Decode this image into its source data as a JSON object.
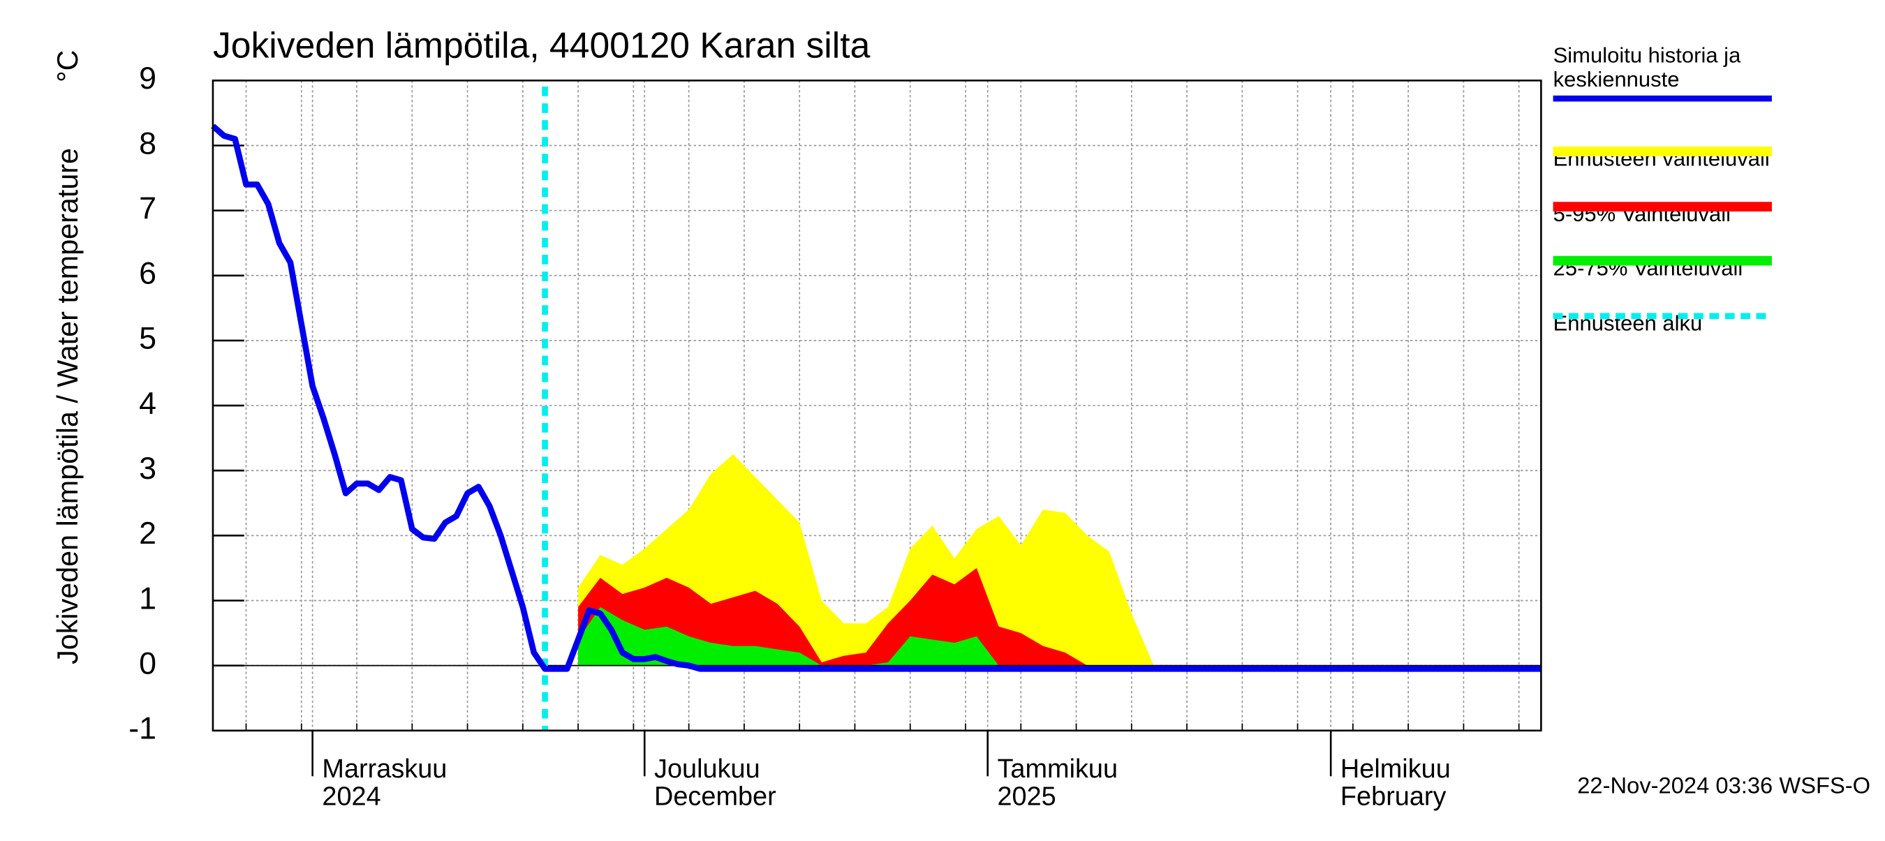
{
  "chart_data": {
    "type": "line",
    "title": "Jokiveden lämpötila, 4400120 Karan silta",
    "ylabel": "Jokiveden lämpötila / Water temperature",
    "yunit": "°C",
    "timestamp": "22-Nov-2024 03:36 WSFS-O",
    "grid": true,
    "xlim": [
      0,
      120
    ],
    "xticks": [
      {
        "value": 9,
        "label": "Marraskuu 2024"
      },
      {
        "value": 39,
        "label": "Joulukuu December"
      },
      {
        "value": 70,
        "label": "Tammikuu 2025"
      },
      {
        "value": 101,
        "label": "Helmikuu February"
      }
    ],
    "xgrid": [
      3,
      8,
      13,
      18,
      23,
      28,
      33,
      38,
      43,
      48,
      53,
      58,
      63,
      68,
      73,
      78,
      83,
      88,
      93,
      98,
      103,
      108,
      113,
      118
    ],
    "ylim": [
      -1,
      9
    ],
    "yticks": [
      -1,
      0,
      1,
      2,
      3,
      4,
      5,
      6,
      7,
      8,
      9
    ],
    "x": [
      0,
      1,
      2,
      3,
      4,
      5,
      6,
      7,
      8,
      9,
      10,
      11,
      12,
      13,
      14,
      15,
      16,
      17,
      18,
      19,
      20,
      21,
      22,
      23,
      24,
      25,
      26,
      27,
      28,
      29,
      30,
      31,
      32,
      33,
      34,
      35,
      36,
      37,
      38,
      39,
      40,
      41,
      42,
      43,
      44,
      45,
      46,
      47,
      48,
      49,
      50,
      51,
      52,
      53,
      54,
      55,
      56,
      57,
      58,
      59,
      60,
      61,
      62,
      63,
      64,
      65,
      66,
      67,
      68,
      69,
      70,
      71,
      72,
      73,
      74,
      75,
      76,
      77,
      78,
      79,
      80,
      81,
      82,
      83,
      84,
      85,
      86,
      87,
      88,
      89,
      90,
      91,
      92,
      93,
      94,
      95,
      96,
      97,
      98,
      99,
      100,
      101,
      102,
      103,
      104,
      105,
      106,
      107,
      108,
      109,
      110,
      111,
      112,
      113,
      114,
      115,
      116,
      117,
      118,
      119,
      120
    ],
    "series": [
      {
        "name": "Simuloitu historia ja keskiennuste",
        "color": "#0000ee",
        "values": [
          8.3,
          8.15,
          8.1,
          7.4,
          7.4,
          7.1,
          6.5,
          6.2,
          5.25,
          4.3,
          3.8,
          3.25,
          2.65,
          2.8,
          2.8,
          2.7,
          2.9,
          2.85,
          2.1,
          1.97,
          1.95,
          2.2,
          2.3,
          2.65,
          2.75,
          2.45,
          2.0,
          1.45,
          0.9,
          0.2,
          -0.05,
          -0.05,
          -0.05,
          0.4,
          0.85,
          0.8,
          0.55,
          0.2,
          0.1,
          0.1,
          0.13,
          0.07,
          0.02,
          0,
          -0.05,
          -0.05,
          -0.05,
          -0.05,
          -0.05,
          -0.05,
          -0.05,
          -0.05,
          -0.05,
          -0.05,
          -0.05,
          -0.05,
          -0.05,
          -0.05,
          -0.05,
          -0.05,
          -0.05,
          -0.05,
          -0.05,
          -0.05,
          -0.05,
          -0.05,
          -0.05,
          -0.05,
          -0.05,
          -0.05,
          -0.05,
          -0.05,
          -0.05,
          -0.05,
          -0.05,
          -0.05,
          -0.05,
          -0.05,
          -0.05,
          -0.05,
          -0.05,
          -0.05,
          -0.05,
          -0.05,
          -0.05,
          -0.05,
          -0.05,
          -0.05,
          -0.05,
          -0.05,
          -0.05,
          -0.05,
          -0.05,
          -0.05,
          -0.05,
          -0.05,
          -0.05,
          -0.05,
          -0.05,
          -0.05,
          -0.05,
          -0.05,
          -0.05,
          -0.05,
          -0.05,
          -0.05,
          -0.05,
          -0.05,
          -0.05,
          -0.05,
          -0.05,
          -0.05,
          -0.05,
          -0.05,
          -0.05,
          -0.05,
          -0.05,
          -0.05,
          -0.05,
          -0.05,
          -0.05
        ]
      }
    ],
    "bands": [
      {
        "name": "Ennusteen vaihteluväli",
        "color": "#ffff00",
        "x": [
          33,
          35,
          37,
          39,
          41,
          43,
          45,
          47,
          49,
          51,
          53,
          55,
          57,
          59,
          61,
          63,
          65,
          67,
          69,
          71,
          73,
          75,
          77,
          79,
          81,
          83,
          85
        ],
        "values": [
          1.2,
          1.7,
          1.55,
          1.8,
          2.1,
          2.4,
          2.95,
          3.25,
          2.9,
          2.55,
          2.2,
          1.0,
          0.65,
          0.65,
          0.9,
          1.8,
          2.15,
          1.65,
          2.1,
          2.3,
          1.85,
          2.4,
          2.35,
          2.0,
          1.75,
          0.8,
          0
        ]
      },
      {
        "name": "5-95% Vaihteluväli",
        "color": "#ff0000",
        "x": [
          33,
          35,
          37,
          39,
          41,
          43,
          45,
          47,
          49,
          51,
          53,
          55,
          57,
          59,
          61,
          63,
          65,
          67,
          69,
          71,
          73,
          75,
          77,
          79,
          81,
          83,
          85
        ],
        "values": [
          0.9,
          1.35,
          1.1,
          1.2,
          1.35,
          1.2,
          0.95,
          1.05,
          1.15,
          0.95,
          0.6,
          0.05,
          0.15,
          0.2,
          0.65,
          1.0,
          1.4,
          1.25,
          1.5,
          0.6,
          0.5,
          0.3,
          0.2,
          0,
          0,
          0,
          0
        ]
      },
      {
        "name": "25-75% Vaihteluväli",
        "color": "#00ee00",
        "x": [
          33,
          35,
          37,
          39,
          41,
          43,
          45,
          47,
          49,
          51,
          53,
          55,
          57,
          59,
          61,
          63,
          65,
          67,
          69,
          71,
          73,
          75,
          77,
          79,
          81,
          83,
          85
        ],
        "values": [
          0.4,
          0.9,
          0.7,
          0.55,
          0.6,
          0.45,
          0.35,
          0.3,
          0.3,
          0.25,
          0.2,
          0,
          0,
          0,
          0.05,
          0.45,
          0.4,
          0.35,
          0.45,
          0,
          0,
          0,
          0,
          0,
          0,
          0,
          0
        ]
      }
    ],
    "forecast": {
      "name": "Ennusteen alku",
      "color": "#00eeee",
      "x": 30
    }
  }
}
